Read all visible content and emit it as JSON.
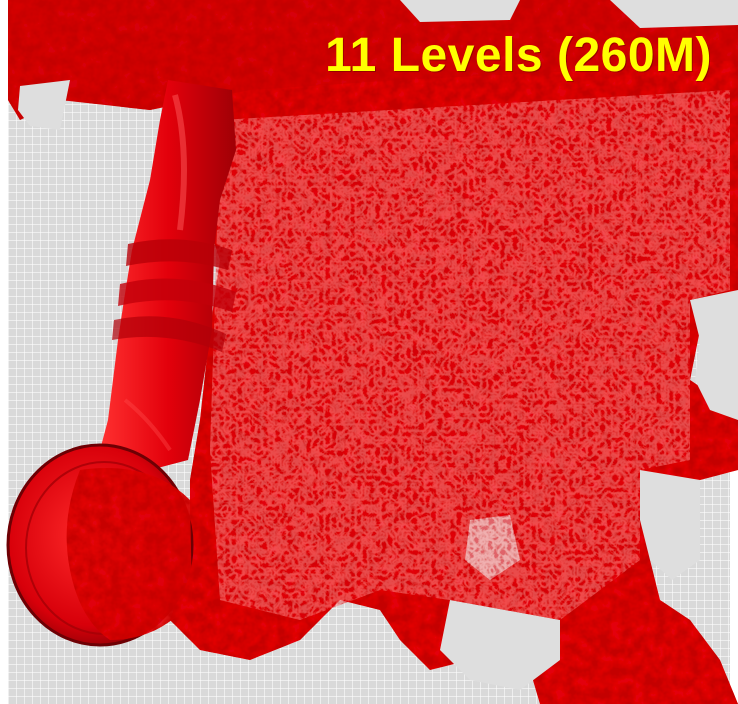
{
  "title": "11 Levels (260M)",
  "colors": {
    "background": "#d9d9d9",
    "isosurface": "#e3000b",
    "isosurface_dark": "#7a0004",
    "isosurface_light": "#ff4040",
    "title_text": "#ffff00"
  },
  "image": {
    "description_icon": "turbulent-jet-isosurface"
  }
}
